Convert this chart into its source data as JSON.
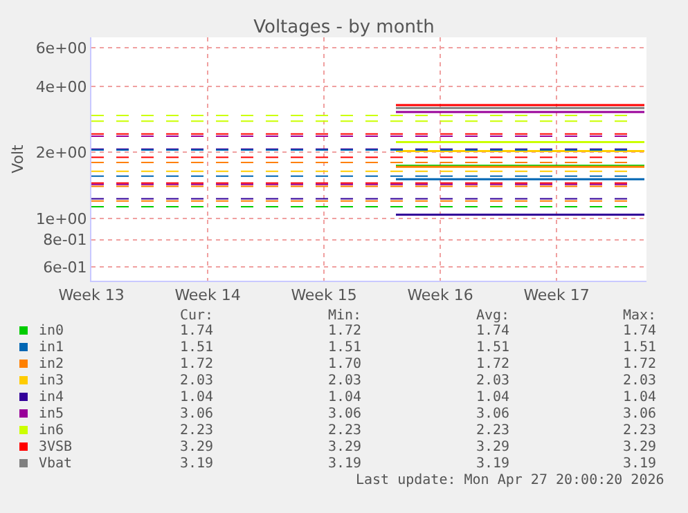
{
  "chart_data": {
    "type": "line",
    "title": "Voltages - by month",
    "ylabel": "Volt",
    "log": "y",
    "xlim": [
      "2026-03-23",
      "2026-04-25T10:00"
    ],
    "xticks": [
      {
        "value": "2026-03-23",
        "label": "Week 13"
      },
      {
        "value": "2026-03-30",
        "label": "Week 14"
      },
      {
        "value": "2026-04-06",
        "label": "Week 15"
      },
      {
        "value": "2026-04-13",
        "label": "Week 16"
      },
      {
        "value": "2026-04-20",
        "label": "Week 17"
      }
    ],
    "ylim": [
      0.52,
      6.7
    ],
    "yticks": [
      {
        "value": 0.6,
        "label": "6e-01"
      },
      {
        "value": 0.8,
        "label": "8e-01"
      },
      {
        "value": 1,
        "label": "1e+00"
      },
      {
        "value": 2,
        "label": "2e+00"
      },
      {
        "value": 4,
        "label": "4e+00"
      },
      {
        "value": 6,
        "label": "6e+00"
      }
    ],
    "grid": true,
    "legend": "bottom",
    "marker": "none",
    "line_style": "solid",
    "x": [
      "2026-04-10T08:00",
      "2026-04-25T07:00"
    ],
    "series": [
      {
        "name": "in0",
        "color": "#00cc00",
        "values": [
          1.74,
          1.74
        ]
      },
      {
        "name": "in1",
        "color": "#0066b3",
        "values": [
          1.51,
          1.51
        ]
      },
      {
        "name": "in2",
        "color": "#ff8000",
        "values": [
          1.72,
          1.72
        ]
      },
      {
        "name": "in3",
        "color": "#ffcc00",
        "values": [
          2.03,
          2.03
        ]
      },
      {
        "name": "in4",
        "color": "#330099",
        "values": [
          1.04,
          1.04
        ]
      },
      {
        "name": "in5",
        "color": "#990099",
        "values": [
          3.06,
          3.06
        ]
      },
      {
        "name": "in6",
        "color": "#ccff00",
        "values": [
          2.23,
          2.23
        ]
      },
      {
        "name": "3VSB",
        "color": "#ff0000",
        "values": [
          3.29,
          3.29
        ]
      },
      {
        "name": "Vbat",
        "color": "#808080",
        "values": [
          3.19,
          3.19
        ]
      }
    ],
    "ref_lines": [
      {
        "axis": "y",
        "value": 2.95,
        "color": "#ccff00",
        "line_style": "dashed"
      },
      {
        "axis": "y",
        "value": 2.78,
        "color": "#ccff00",
        "line_style": "dashed"
      },
      {
        "axis": "y",
        "value": 2.43,
        "color": "#ff0000",
        "line_style": "dashed"
      },
      {
        "axis": "y",
        "value": 2.37,
        "color": "#990099",
        "line_style": "dashed"
      },
      {
        "axis": "y",
        "value": 2.07,
        "color": "#330099",
        "line_style": "dashed"
      },
      {
        "axis": "y",
        "value": 2.05,
        "color": "#0066b3",
        "line_style": "dashed"
      },
      {
        "axis": "y",
        "value": 1.9,
        "color": "#ff0000",
        "line_style": "dashed"
      },
      {
        "axis": "y",
        "value": 1.8,
        "color": "#ff8000",
        "line_style": "dashed"
      },
      {
        "axis": "y",
        "value": 1.64,
        "color": "#ffcc00",
        "line_style": "dashed"
      },
      {
        "axis": "y",
        "value": 1.56,
        "color": "#0066b3",
        "line_style": "dashed"
      },
      {
        "axis": "y",
        "value": 1.45,
        "color": "#ff0000",
        "line_style": "dashed"
      },
      {
        "axis": "y",
        "value": 1.43,
        "color": "#990099",
        "line_style": "dashed"
      },
      {
        "axis": "y",
        "value": 1.4,
        "color": "#ff8000",
        "line_style": "dashed"
      },
      {
        "axis": "y",
        "value": 1.23,
        "color": "#330099",
        "line_style": "dashed"
      },
      {
        "axis": "y",
        "value": 1.2,
        "color": "#ff8000",
        "line_style": "dashed"
      },
      {
        "axis": "y",
        "value": 1.13,
        "color": "#00cc00",
        "line_style": "dashed"
      }
    ],
    "annotations": [
      "Cur:",
      "Min:",
      "Avg:",
      "Max:",
      "1.74",
      "1.72",
      "1.74",
      "1.74",
      "1.51",
      "1.51",
      "1.51",
      "1.51",
      "1.72",
      "1.70",
      "1.72",
      "1.72",
      "2.03",
      "2.03",
      "2.03",
      "2.03",
      "1.04",
      "1.04",
      "1.04",
      "1.04",
      "3.06",
      "3.06",
      "3.06",
      "3.06",
      "2.23",
      "2.23",
      "2.23",
      "2.23",
      "3.29",
      "3.29",
      "3.29",
      "3.29",
      "3.19",
      "3.19",
      "3.19",
      "3.19",
      "Last update: Mon Apr 27 20:00:20 2026"
    ]
  }
}
